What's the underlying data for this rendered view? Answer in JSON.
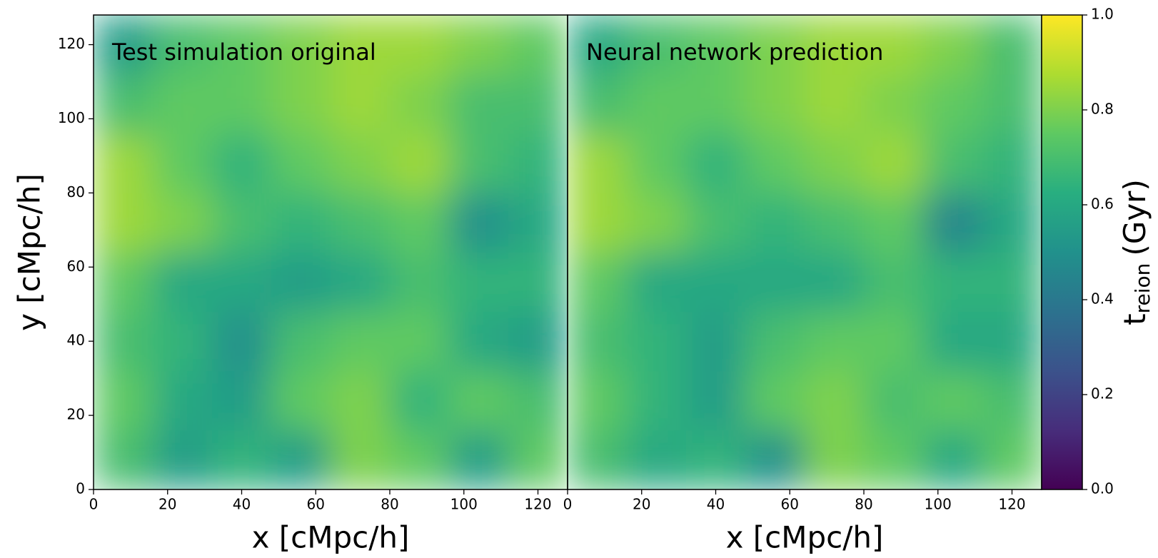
{
  "chart_data": [
    {
      "type": "heatmap",
      "title": "Test simulation original",
      "xlabel": "x [cMpc/h]",
      "ylabel": "y [cMpc/h]",
      "xlim": [
        0,
        128
      ],
      "ylim": [
        0,
        128
      ],
      "xticks": [
        0,
        20,
        40,
        60,
        80,
        100,
        120
      ],
      "yticks": [
        0,
        20,
        40,
        60,
        80,
        100,
        120
      ],
      "colormap": "viridis",
      "clim": [
        0,
        1
      ],
      "values": [
        [
          0.7,
          0.55,
          0.65,
          0.55,
          0.8,
          0.75,
          0.55,
          0.75
        ],
        [
          0.75,
          0.6,
          0.55,
          0.75,
          0.8,
          0.65,
          0.75,
          0.7
        ],
        [
          0.7,
          0.65,
          0.5,
          0.7,
          0.75,
          0.75,
          0.6,
          0.55
        ],
        [
          0.75,
          0.6,
          0.6,
          0.55,
          0.6,
          0.7,
          0.65,
          0.65
        ],
        [
          0.85,
          0.8,
          0.7,
          0.65,
          0.7,
          0.75,
          0.5,
          0.6
        ],
        [
          0.85,
          0.75,
          0.65,
          0.75,
          0.8,
          0.85,
          0.7,
          0.65
        ],
        [
          0.7,
          0.75,
          0.75,
          0.8,
          0.85,
          0.8,
          0.7,
          0.7
        ],
        [
          0.55,
          0.7,
          0.75,
          0.8,
          0.85,
          0.85,
          0.8,
          0.75
        ]
      ]
    },
    {
      "type": "heatmap",
      "title": "Neural network prediction",
      "xlabel": "x [cMpc/h]",
      "xlim": [
        0,
        128
      ],
      "ylim": [
        0,
        128
      ],
      "xticks": [
        0,
        20,
        40,
        60,
        80,
        100,
        120
      ],
      "colormap": "viridis",
      "clim": [
        0,
        1
      ],
      "values": [
        [
          0.7,
          0.6,
          0.65,
          0.5,
          0.8,
          0.75,
          0.6,
          0.75
        ],
        [
          0.75,
          0.65,
          0.55,
          0.75,
          0.8,
          0.7,
          0.75,
          0.7
        ],
        [
          0.7,
          0.65,
          0.55,
          0.7,
          0.75,
          0.75,
          0.6,
          0.6
        ],
        [
          0.75,
          0.6,
          0.6,
          0.6,
          0.6,
          0.7,
          0.65,
          0.65
        ],
        [
          0.85,
          0.8,
          0.7,
          0.65,
          0.7,
          0.75,
          0.45,
          0.6
        ],
        [
          0.85,
          0.75,
          0.65,
          0.75,
          0.8,
          0.85,
          0.7,
          0.65
        ],
        [
          0.7,
          0.75,
          0.75,
          0.8,
          0.85,
          0.8,
          0.75,
          0.7
        ],
        [
          0.6,
          0.7,
          0.75,
          0.8,
          0.85,
          0.85,
          0.8,
          0.7
        ]
      ],
      "colorbar": {
        "label": {
          "base": "t",
          "sub": "reion",
          "unit": "(Gyr)"
        },
        "lim": [
          0,
          1
        ],
        "ticks": [
          {
            "value": 0,
            "label": "0.0"
          },
          0.2,
          0.4,
          0.6,
          0.8,
          {
            "value": 1,
            "label": "1.0"
          }
        ]
      }
    }
  ]
}
